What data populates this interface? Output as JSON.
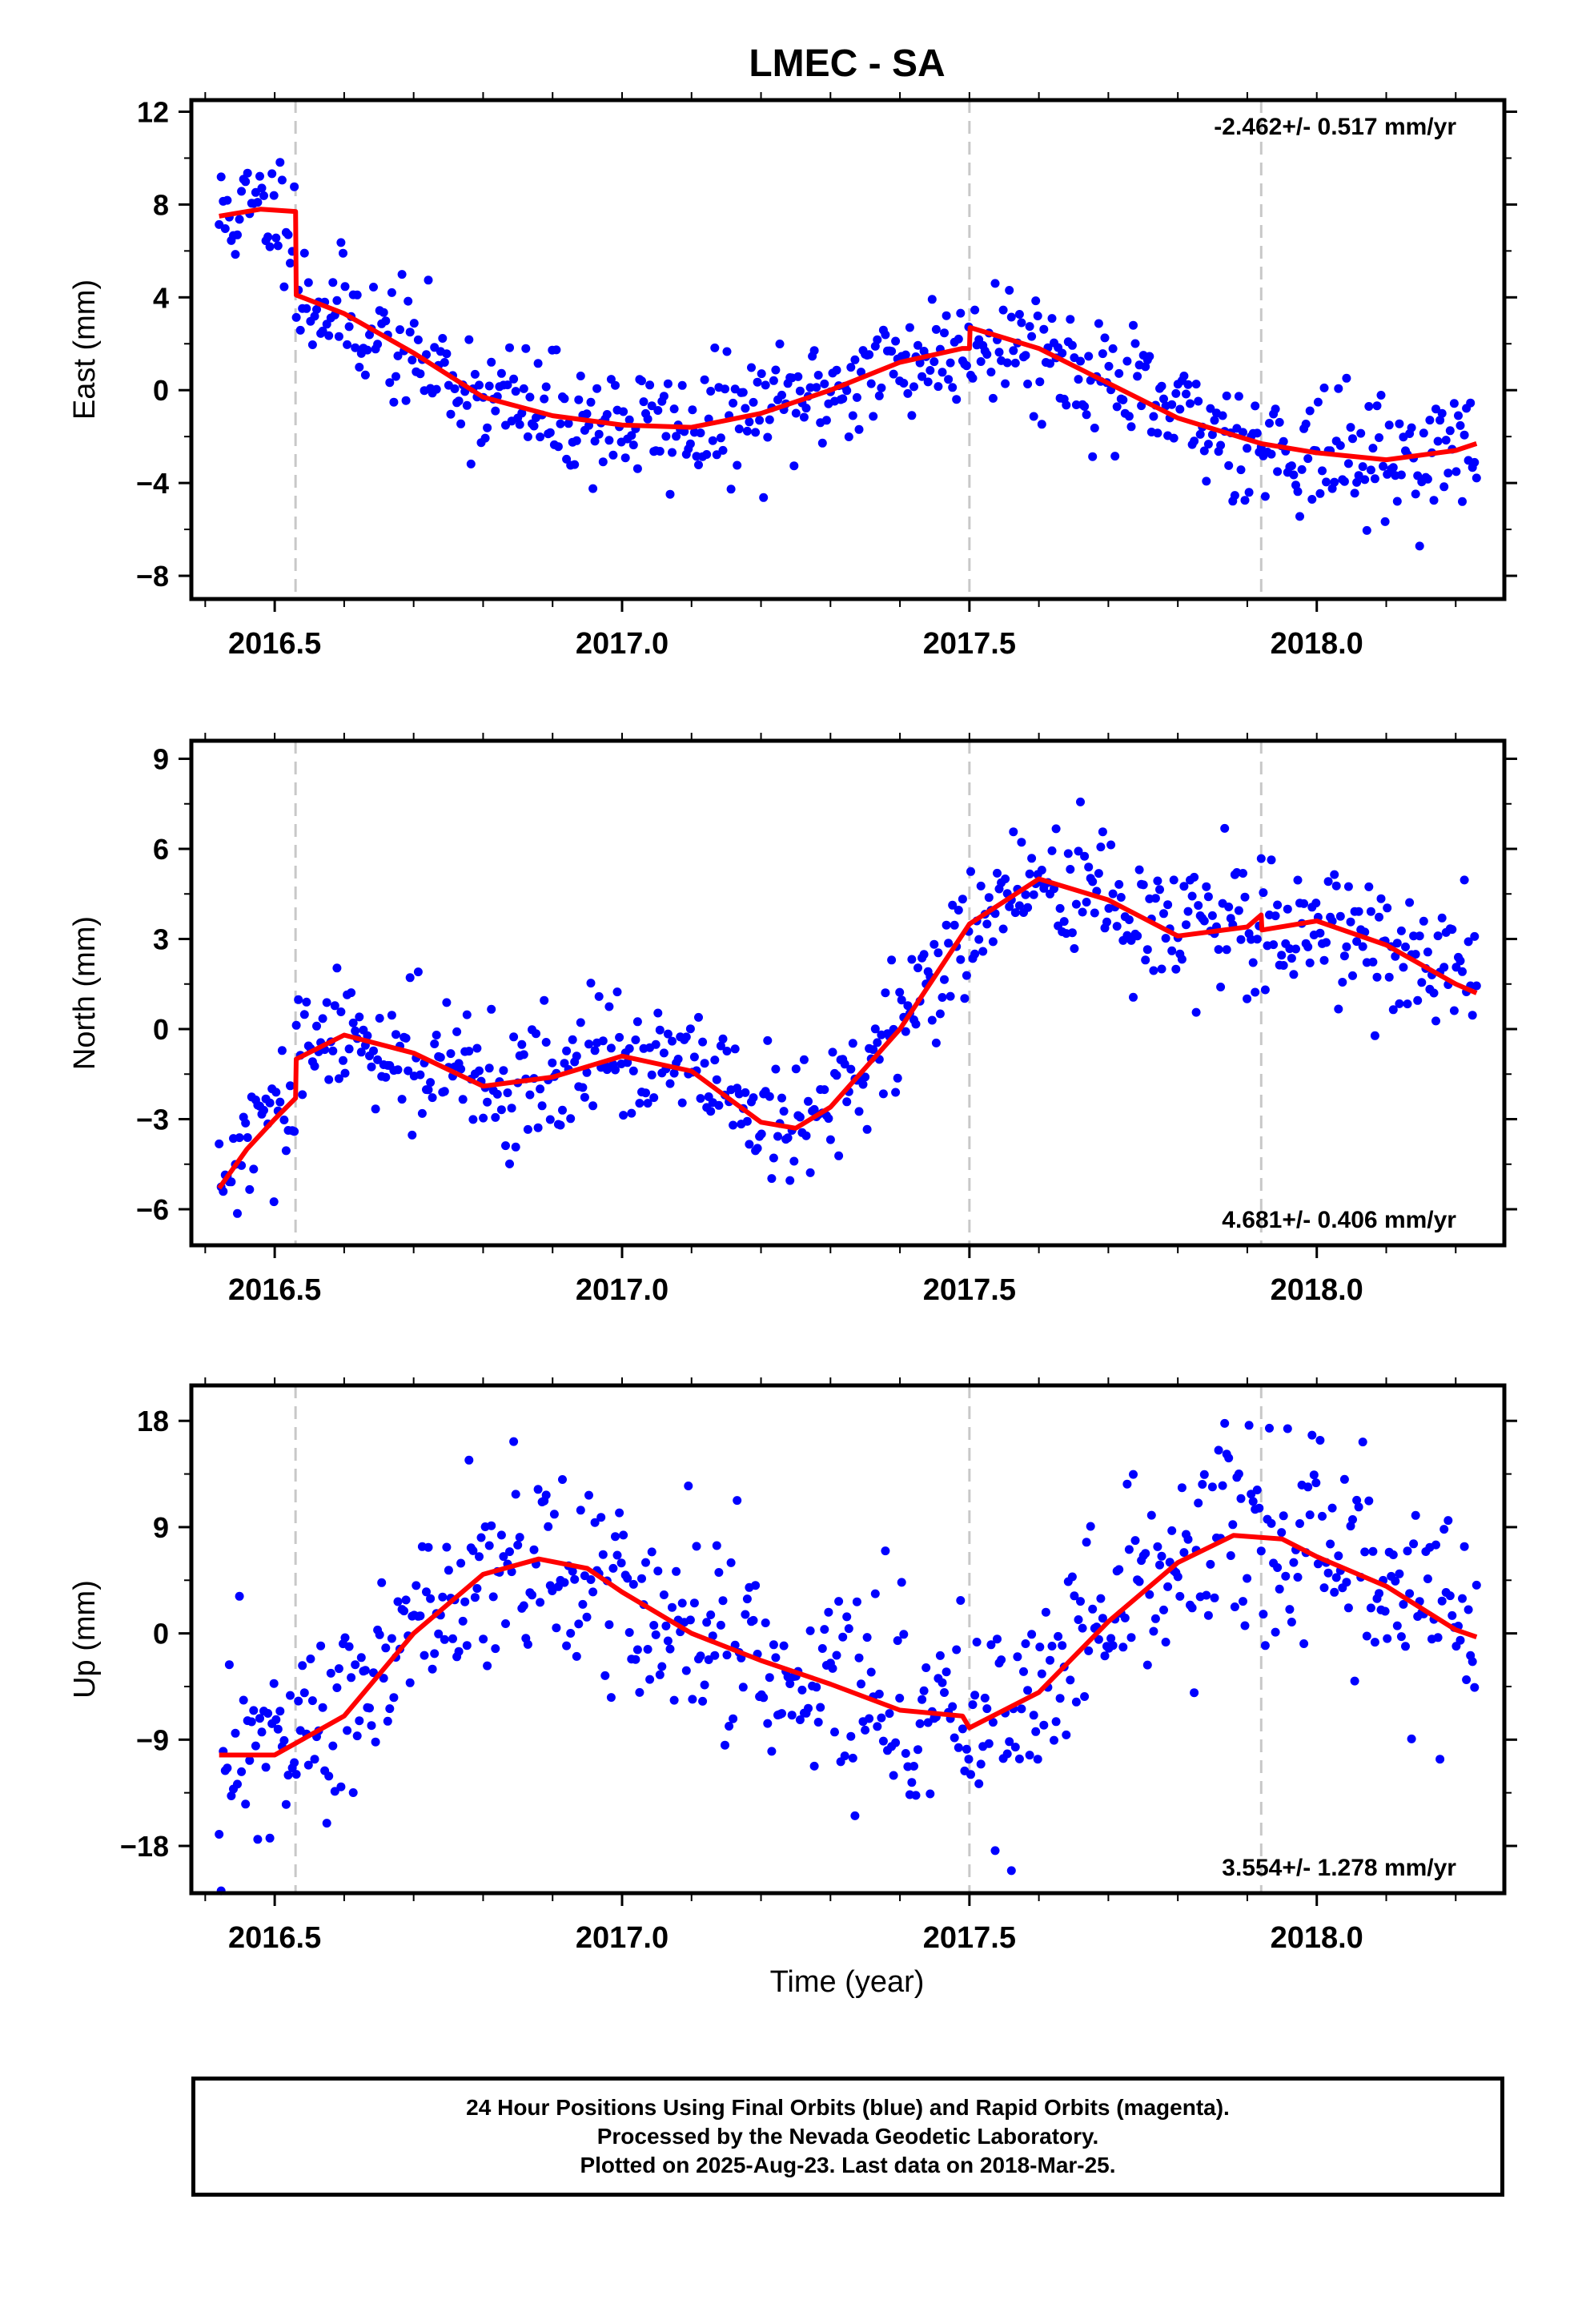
{
  "title": "LMEC - SA",
  "x_axis_label": "Time (year)",
  "x_tick_labels": [
    "2016.5",
    "2017.0",
    "2017.5",
    "2018.0"
  ],
  "colors": {
    "points": "#0000ff",
    "model": "#ff0000",
    "offset_lines": "#c8c8c8"
  },
  "footer": {
    "line1": "24 Hour Positions Using Final Orbits (blue) and Rapid Orbits (magenta).",
    "line2": "Processed by the Nevada Geodetic Laboratory.",
    "line3": "Plotted on 2025-Aug-23. Last data on 2018-Mar-25."
  },
  "chart_data": [
    {
      "type": "scatter",
      "component": "east",
      "title": "LMEC - SA",
      "ylabel": "East (mm)",
      "xlabel": "",
      "xlim": [
        2016.38,
        2018.27
      ],
      "ylim": [
        -9,
        12.5
      ],
      "yticks": [
        -8,
        -4,
        0,
        4,
        8,
        12
      ],
      "xticks": [
        2016.5,
        2017.0,
        2017.5,
        2018.0
      ],
      "rate_label": "-2.462+/- 0.517 mm/yr",
      "rate_position": "top-right",
      "offsets_x": [
        2016.53,
        2017.5,
        2017.92
      ],
      "model_knots": [
        [
          2016.42,
          7.5
        ],
        [
          2016.48,
          7.8
        ],
        [
          2016.53,
          7.7
        ],
        [
          2016.531,
          4.1
        ],
        [
          2016.6,
          3.3
        ],
        [
          2016.7,
          1.6
        ],
        [
          2016.8,
          -0.3
        ],
        [
          2016.9,
          -1.1
        ],
        [
          2017.0,
          -1.5
        ],
        [
          2017.1,
          -1.6
        ],
        [
          2017.2,
          -1.0
        ],
        [
          2017.3,
          0.0
        ],
        [
          2017.4,
          1.2
        ],
        [
          2017.49,
          1.8
        ],
        [
          2017.5,
          1.8
        ],
        [
          2017.501,
          2.7
        ],
        [
          2017.6,
          1.8
        ],
        [
          2017.7,
          0.3
        ],
        [
          2017.8,
          -1.2
        ],
        [
          2017.92,
          -2.3
        ],
        [
          2018.0,
          -2.7
        ],
        [
          2018.1,
          -3.0
        ],
        [
          2018.2,
          -2.6
        ],
        [
          2018.23,
          -2.3
        ]
      ],
      "noise_sd": 1.3,
      "n_points": 620,
      "seed": 11
    },
    {
      "type": "scatter",
      "component": "north",
      "ylabel": "North (mm)",
      "xlabel": "",
      "xlim": [
        2016.38,
        2018.27
      ],
      "ylim": [
        -7.2,
        9.6
      ],
      "yticks": [
        -6,
        -3,
        0,
        3,
        6,
        9
      ],
      "xticks": [
        2016.5,
        2017.0,
        2017.5,
        2018.0
      ],
      "rate_label": "4.681+/- 0.406 mm/yr",
      "rate_position": "bottom-right",
      "offsets_x": [
        2016.53,
        2017.5,
        2017.92
      ],
      "model_knots": [
        [
          2016.42,
          -5.3
        ],
        [
          2016.46,
          -4.0
        ],
        [
          2016.5,
          -3.0
        ],
        [
          2016.53,
          -2.3
        ],
        [
          2016.531,
          -1.0
        ],
        [
          2016.6,
          -0.2
        ],
        [
          2016.7,
          -0.8
        ],
        [
          2016.8,
          -1.9
        ],
        [
          2016.9,
          -1.6
        ],
        [
          2017.0,
          -0.9
        ],
        [
          2017.1,
          -1.4
        ],
        [
          2017.2,
          -3.1
        ],
        [
          2017.25,
          -3.3
        ],
        [
          2017.3,
          -2.6
        ],
        [
          2017.4,
          0.0
        ],
        [
          2017.5,
          3.5
        ],
        [
          2017.6,
          5.0
        ],
        [
          2017.7,
          4.3
        ],
        [
          2017.8,
          3.1
        ],
        [
          2017.9,
          3.4
        ],
        [
          2017.92,
          3.8
        ],
        [
          2017.921,
          3.3
        ],
        [
          2018.0,
          3.6
        ],
        [
          2018.1,
          2.8
        ],
        [
          2018.2,
          1.5
        ],
        [
          2018.23,
          1.2
        ]
      ],
      "noise_sd": 1.05,
      "n_points": 620,
      "seed": 29
    },
    {
      "type": "scatter",
      "component": "up",
      "ylabel": "Up (mm)",
      "xlabel": "Time (year)",
      "xlim": [
        2016.38,
        2018.27
      ],
      "ylim": [
        -22,
        21
      ],
      "yticks": [
        -18,
        -9,
        0,
        9,
        18
      ],
      "xticks": [
        2016.5,
        2017.0,
        2017.5,
        2018.0
      ],
      "rate_label": "3.554+/- 1.278 mm/yr",
      "rate_position": "bottom-right",
      "offsets_x": [
        2016.53,
        2017.5,
        2017.92
      ],
      "model_knots": [
        [
          2016.42,
          -10.3
        ],
        [
          2016.5,
          -10.3
        ],
        [
          2016.6,
          -7.0
        ],
        [
          2016.7,
          0.0
        ],
        [
          2016.8,
          5.0
        ],
        [
          2016.88,
          6.3
        ],
        [
          2016.95,
          5.5
        ],
        [
          2017.0,
          3.5
        ],
        [
          2017.1,
          0.0
        ],
        [
          2017.2,
          -2.3
        ],
        [
          2017.3,
          -4.3
        ],
        [
          2017.4,
          -6.5
        ],
        [
          2017.49,
          -7.0
        ],
        [
          2017.5,
          -8.0
        ],
        [
          2017.6,
          -5.0
        ],
        [
          2017.7,
          1.0
        ],
        [
          2017.8,
          6.0
        ],
        [
          2017.88,
          8.3
        ],
        [
          2017.95,
          8.0
        ],
        [
          2018.0,
          6.5
        ],
        [
          2018.1,
          4.0
        ],
        [
          2018.2,
          0.3
        ],
        [
          2018.23,
          -0.3
        ]
      ],
      "noise_sd": 4.2,
      "n_points": 620,
      "seed": 47
    }
  ]
}
